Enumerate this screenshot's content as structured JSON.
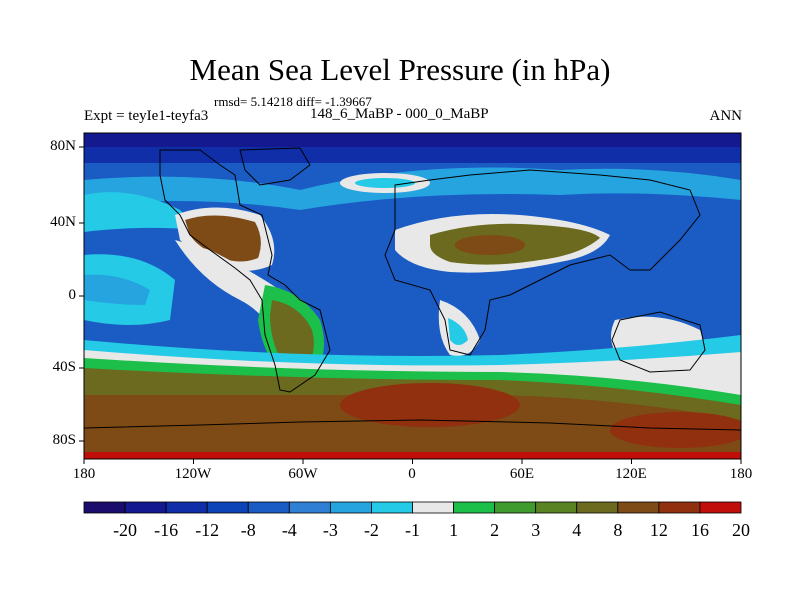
{
  "title": "Mean Sea Level Pressure (in hPa)",
  "stats_text": "rmsd= 5.14218 diff= -1.39667",
  "left_label": "Expt = teyIe1-teyfa3",
  "center_label": "148_6_MaBP - 000_0_MaBP",
  "right_label": "ANN",
  "lat_ticks": [
    "80N",
    "40N",
    "0",
    "40S",
    "80S"
  ],
  "lon_ticks": [
    "180",
    "120W",
    "60W",
    "0",
    "60E",
    "120E",
    "180"
  ],
  "colorbar": {
    "colors": [
      "#1a0d6b",
      "#15198f",
      "#0f2ea8",
      "#0c44b7",
      "#1a5cc4",
      "#2f80d4",
      "#26a4e0",
      "#25cae6",
      "#e8e8e8",
      "#1cbf4a",
      "#3f9b2e",
      "#5a8424",
      "#6b6a1e",
      "#7e4a16",
      "#91300f",
      "#c00e0a"
    ],
    "tick_labels": [
      "-20",
      "-16",
      "-12",
      "-8",
      "-4",
      "-3",
      "-2",
      "-1",
      "1",
      "2",
      "3",
      "4",
      "8",
      "12",
      "16",
      "20"
    ]
  }
}
